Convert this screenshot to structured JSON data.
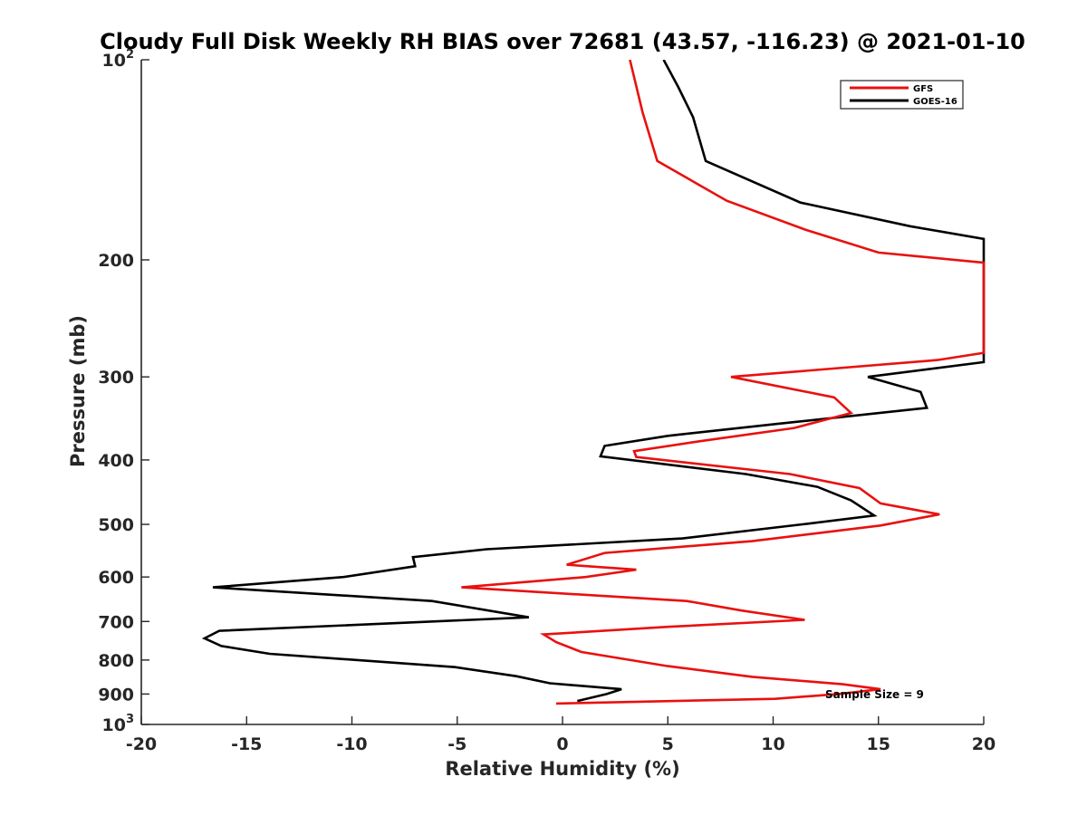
{
  "chart_data": {
    "type": "line",
    "title": "Cloudy Full Disk Weekly RH BIAS over 72681 (43.57, -116.23) @ 2021-01-10",
    "xlabel": "Relative Humidity (%)",
    "ylabel": "Pressure (mb)",
    "xlim": [
      -20,
      20
    ],
    "ylim": [
      100,
      1000
    ],
    "y_scale": "log",
    "y_reversed": true,
    "x_ticks": [
      "-20",
      "-15",
      "-10",
      "-5",
      "0",
      "5",
      "10",
      "15",
      "20"
    ],
    "y_ticks": [
      {
        "value": 100,
        "base": "10",
        "exp": "2"
      },
      {
        "value": 200,
        "base": "200",
        "exp": ""
      },
      {
        "value": 300,
        "base": "300",
        "exp": ""
      },
      {
        "value": 400,
        "base": "400",
        "exp": ""
      },
      {
        "value": 500,
        "base": "500",
        "exp": ""
      },
      {
        "value": 600,
        "base": "600",
        "exp": ""
      },
      {
        "value": 700,
        "base": "700",
        "exp": ""
      },
      {
        "value": 800,
        "base": "800",
        "exp": ""
      },
      {
        "value": 900,
        "base": "900",
        "exp": ""
      },
      {
        "value": 1000,
        "base": "10",
        "exp": "3"
      }
    ],
    "grid": false,
    "legend_position": "top-right",
    "annotation": "Sample Size = 9",
    "series": [
      {
        "name": "GFS",
        "color": "#e8110f",
        "points": [
          [
            3.2,
            100
          ],
          [
            3.8,
            120
          ],
          [
            4.5,
            142
          ],
          [
            7.8,
            163
          ],
          [
            11.5,
            180
          ],
          [
            15.0,
            195
          ],
          [
            20.0,
            202
          ],
          [
            20.0,
            276
          ],
          [
            17.8,
            283
          ],
          [
            8.0,
            300
          ],
          [
            12.9,
            322
          ],
          [
            13.7,
            340
          ],
          [
            11.0,
            358
          ],
          [
            6.5,
            375
          ],
          [
            3.4,
            388
          ],
          [
            3.5,
            396
          ],
          [
            10.8,
            420
          ],
          [
            14.1,
            441
          ],
          [
            15.1,
            465
          ],
          [
            17.9,
            483
          ],
          [
            15.1,
            502
          ],
          [
            9.0,
            530
          ],
          [
            2.0,
            552
          ],
          [
            0.2,
            575
          ],
          [
            3.5,
            585
          ],
          [
            1.1,
            600
          ],
          [
            -4.8,
            622
          ],
          [
            5.9,
            652
          ],
          [
            8.5,
            674
          ],
          [
            11.5,
            696
          ],
          [
            5.0,
            713
          ],
          [
            -0.9,
            732
          ],
          [
            -0.3,
            752
          ],
          [
            0.9,
            778
          ],
          [
            5.0,
            817
          ],
          [
            9.0,
            848
          ],
          [
            13.3,
            870
          ],
          [
            15.1,
            885
          ],
          [
            13.1,
            900
          ],
          [
            10.1,
            915
          ],
          [
            -0.3,
            930
          ]
        ]
      },
      {
        "name": "GOES-16",
        "color": "#000000",
        "points": [
          [
            4.8,
            100
          ],
          [
            5.5,
            110
          ],
          [
            6.2,
            122
          ],
          [
            6.8,
            142
          ],
          [
            11.3,
            164
          ],
          [
            16.5,
            178
          ],
          [
            20.0,
            186
          ],
          [
            20.0,
            285
          ],
          [
            14.5,
            300
          ],
          [
            17.0,
            316
          ],
          [
            17.3,
            334
          ],
          [
            10.2,
            353
          ],
          [
            5.0,
            368
          ],
          [
            2.0,
            381
          ],
          [
            1.8,
            395
          ],
          [
            8.7,
            420
          ],
          [
            12.1,
            439
          ],
          [
            13.7,
            460
          ],
          [
            14.8,
            485
          ],
          [
            11.4,
            500
          ],
          [
            5.7,
            525
          ],
          [
            -3.6,
            545
          ],
          [
            -7.1,
            560
          ],
          [
            -7.0,
            578
          ],
          [
            -10.4,
            600
          ],
          [
            -16.6,
            622
          ],
          [
            -6.2,
            652
          ],
          [
            -1.6,
            690
          ],
          [
            -16.3,
            723
          ],
          [
            -17.0,
            742
          ],
          [
            -16.2,
            762
          ],
          [
            -13.9,
            783
          ],
          [
            -5.1,
            820
          ],
          [
            -2.2,
            846
          ],
          [
            -0.6,
            867
          ],
          [
            2.8,
            885
          ],
          [
            2.1,
            900
          ],
          [
            0.7,
            922
          ]
        ]
      }
    ]
  }
}
